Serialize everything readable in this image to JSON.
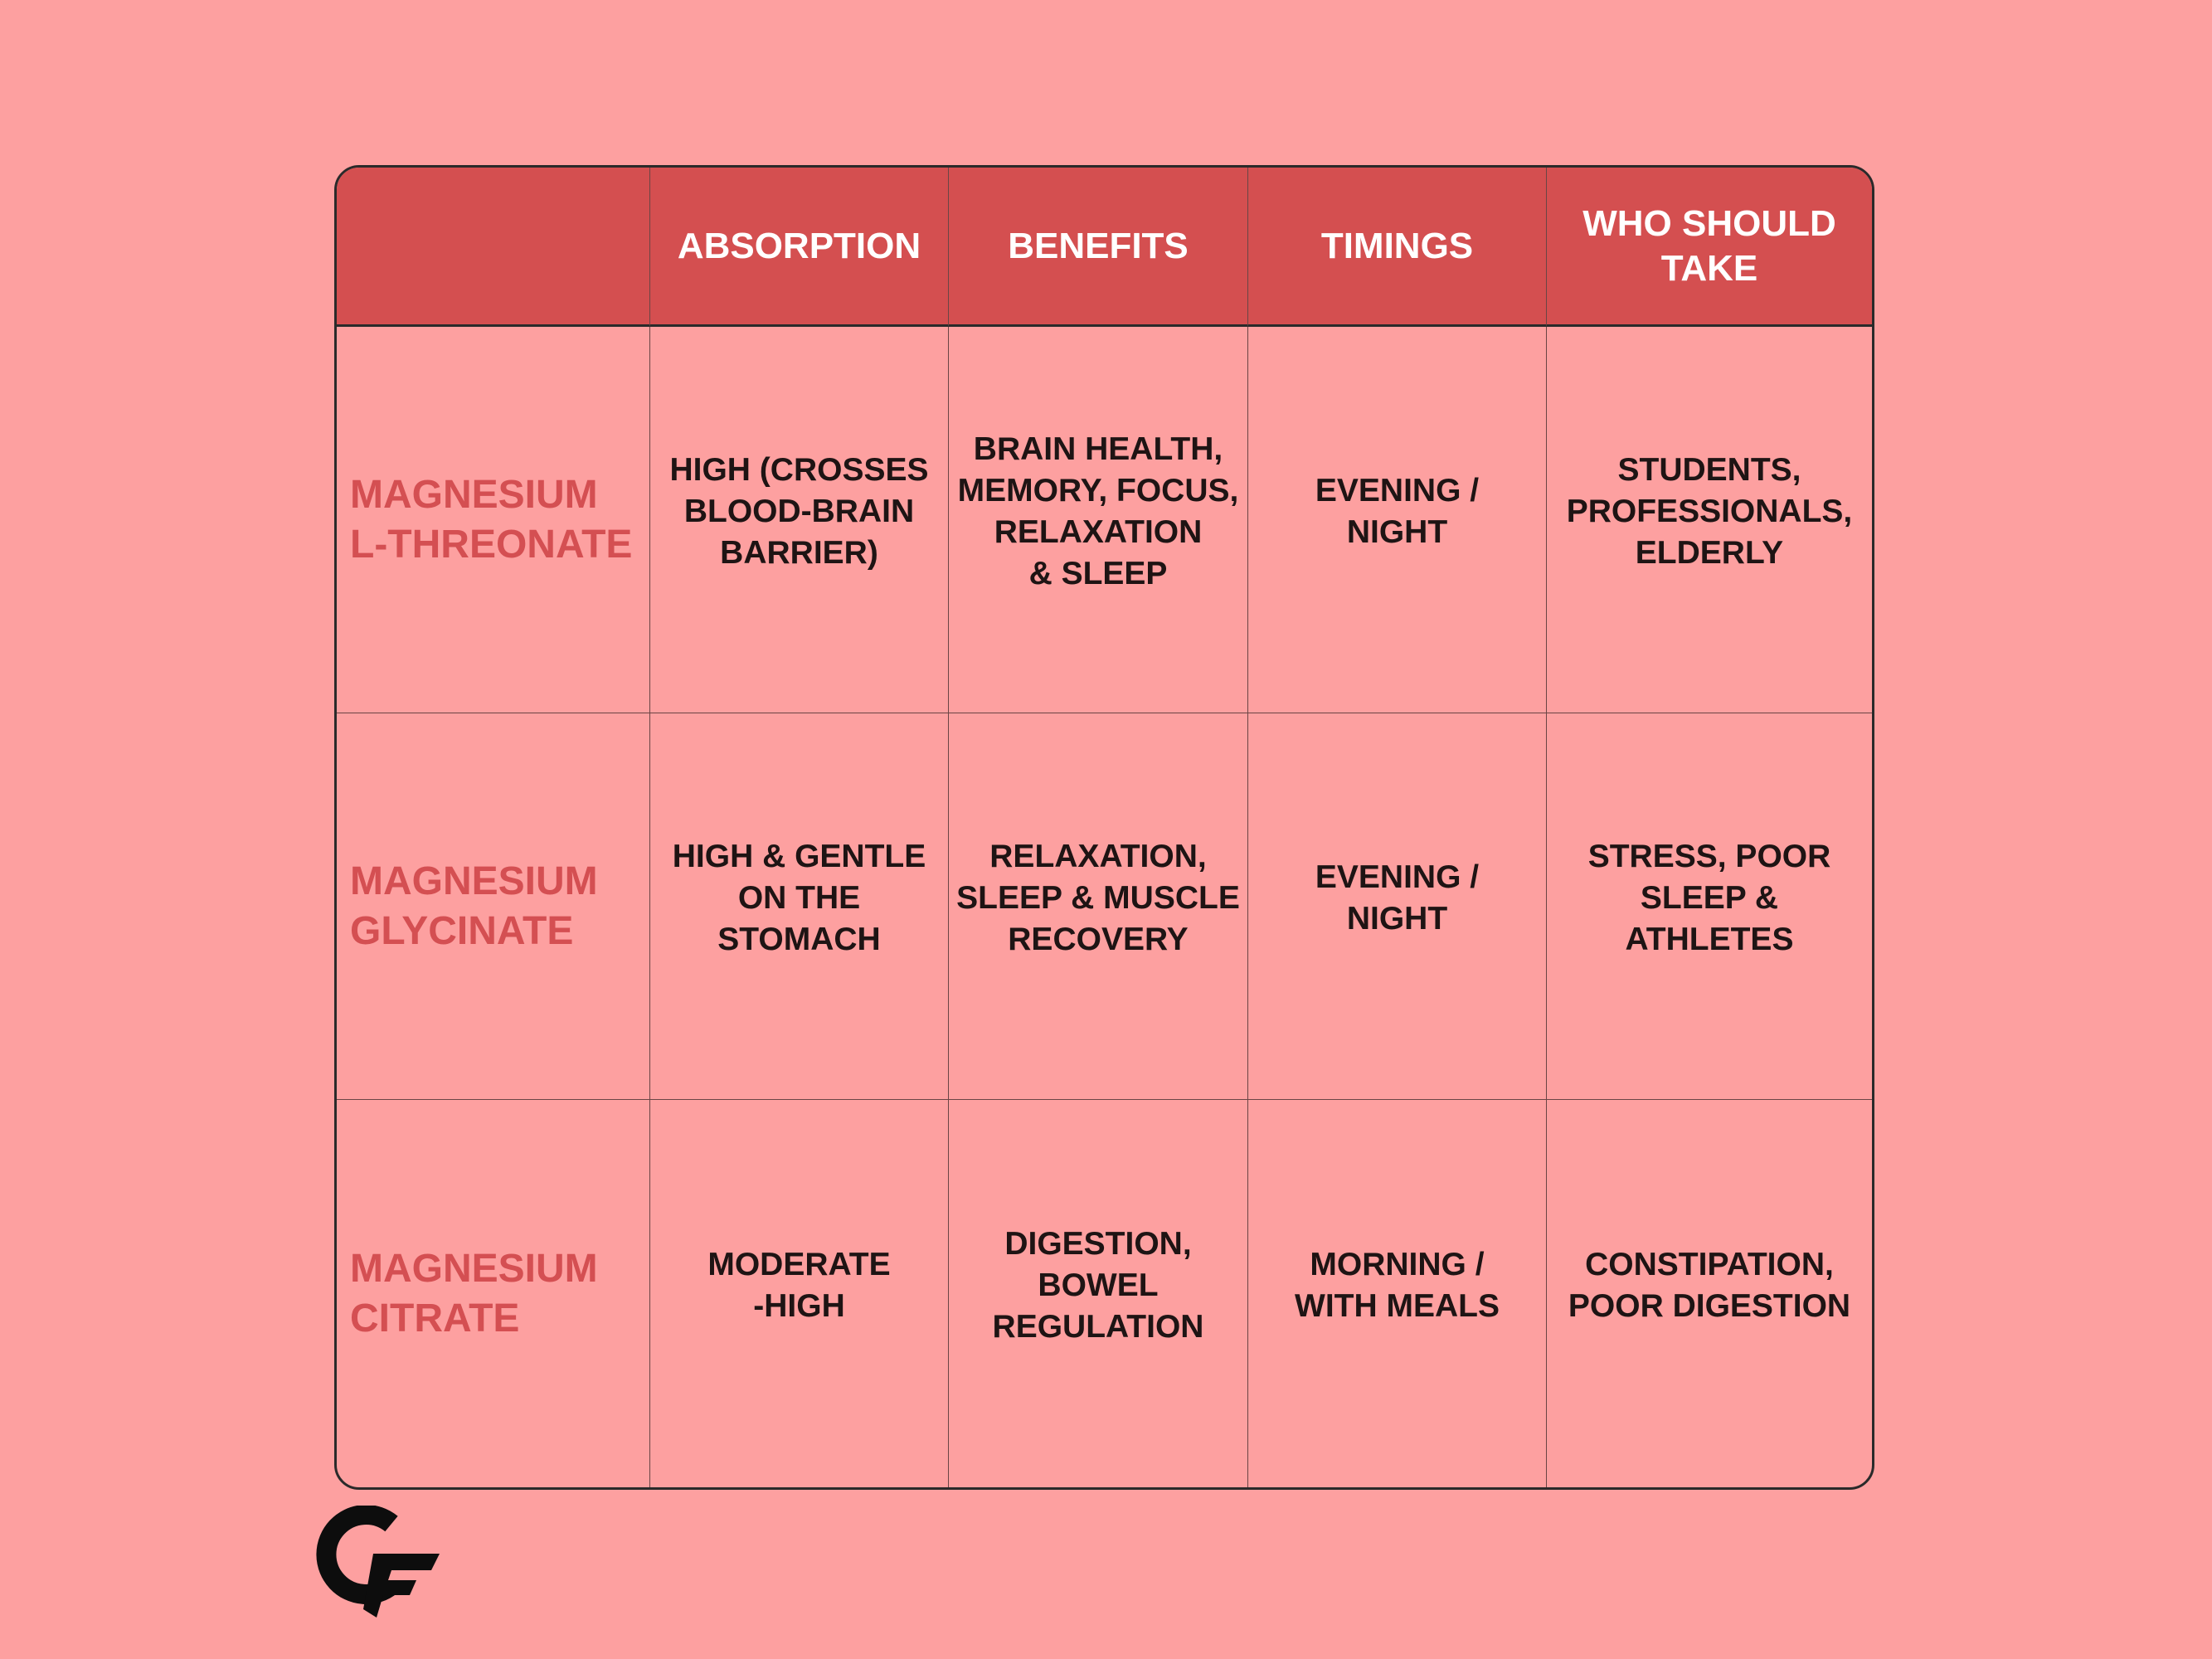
{
  "table": {
    "header": [
      "ABSORPTION",
      "BENEFITS",
      "TIMINGS",
      "WHO SHOULD\nTAKE"
    ],
    "rows": [
      {
        "name": "MAGNESIUM\nL-THREONATE",
        "cells": [
          "HIGH (CROSSES\nBLOOD-BRAIN\nBARRIER)",
          "BRAIN HEALTH,\nMEMORY, FOCUS,\nRELAXATION\n& SLEEP",
          "EVENING /\nNIGHT",
          "STUDENTS,\nPROFESSIONALS,\nELDERLY"
        ]
      },
      {
        "name": "MAGNESIUM\nGLYCINATE",
        "cells": [
          "HIGH & GENTLE\nON THE\nSTOMACH",
          "RELAXATION,\nSLEEP & MUSCLE\nRECOVERY",
          "EVENING /\nNIGHT",
          "STRESS, POOR\nSLEEP & ATHLETES"
        ]
      },
      {
        "name": "MAGNESIUM\nCITRATE",
        "cells": [
          "MODERATE\n-HIGH",
          "DIGESTION,\nBOWEL\nREGULATION",
          "MORNING /\nWITH MEALS",
          "CONSTIPATION,\nPOOR DIGESTION"
        ]
      }
    ]
  }
}
